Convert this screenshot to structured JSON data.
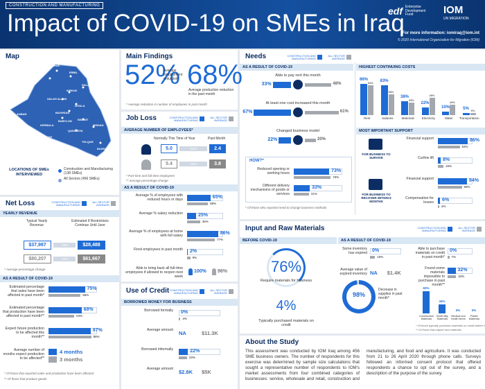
{
  "colors": {
    "cm": "#1f6bd6",
    "all": "#a3a8ae"
  },
  "header": {
    "tag": "CONSTRUCTION AND MANUFACTURING",
    "title": "Impact of COVID-19 on SMEs in Iraq",
    "logos": [
      "edf",
      "Enterprise Development Fund",
      "IOM",
      "UN MIGRATION"
    ],
    "more_info": "For more information: iomiraq@iom.int",
    "copyright": "© 2020 International Organization for Migration (IOM)"
  },
  "legend": {
    "cm": "CONSTRUCTION AND MANUFACTURING",
    "all": "ALL SECTOR AVERAGE"
  },
  "map": {
    "title": "Map",
    "cities": [
      "DAHUK",
      "ERBIL",
      "NINEWA",
      "SULAYMANIYAH",
      "KIRKUK",
      "SALAH AL-DIN",
      "DIYALA",
      "ANBAR",
      "BAGHDAD",
      "KERBALA",
      "BABYLON",
      "WASSIT",
      "NAJAF",
      "QADISSIYA",
      "MISSAN",
      "THI-QAR",
      "BASRA",
      "MUTHANNA"
    ],
    "legend_title": "LOCATIONS OF SMEs INTERVIEWED",
    "legend_items": [
      "Construction and Manufacturing (138 SMEs)",
      "All Sectors (456 SMEs)"
    ]
  },
  "main_findings": {
    "title": "Main Findings",
    "values": [
      52,
      68
    ],
    "value_labels": [
      "52%",
      "68%"
    ],
    "labels": [
      "Average employment reduction*",
      "Average production reduction in the past month"
    ],
    "note": "* Average reduction in number of employees in past month"
  },
  "job_loss": {
    "title": "Job Loss",
    "subtitle": "AVERAGE NUMBER OF EMPLOYEES*",
    "columns": [
      "Normally This Time of Year",
      "Past Month"
    ],
    "rows": [
      {
        "values": [
          5,
          2.4
        ],
        "value_labels": [
          "5.0",
          "2.4"
        ],
        "change": "-52%"
      },
      {
        "values": [
          5.4,
          3.8
        ],
        "value_labels": [
          "5.4",
          "3.8"
        ],
        "change": "-30%"
      }
    ],
    "notes": [
      "* Part-time and full-time employees",
      "** average percentage change"
    ],
    "covid": {
      "subtitle": "AS A RESULT OF COVID-19",
      "items": [
        {
          "label": "Average % of employees with reduced hours or days",
          "values": [
            65,
            58
          ],
          "value_labels": [
            "65%",
            "58%"
          ]
        },
        {
          "label": "Average % salary reduction",
          "values": [
            25,
            36
          ],
          "value_labels": [
            "25%",
            "36%"
          ]
        },
        {
          "label": "Average % of employees at home with full salary",
          "values": [
            86,
            77
          ],
          "value_labels": [
            "86%",
            "77%"
          ]
        },
        {
          "label": "Fired employees in past month",
          "values": [
            2,
            9
          ],
          "value_labels": [
            "2%",
            "9%"
          ]
        }
      ],
      "bring_back": {
        "label": "Able to bring back all full-time employees if allowed to reopen next week",
        "values": [
          100,
          96
        ],
        "value_labels": [
          "100%",
          "96%"
        ]
      }
    }
  },
  "net_loss": {
    "title": "Net Loss",
    "subtitle": "YEARLY REVENUE",
    "columns": [
      "Typical Yearly Revenue",
      "Estimated if Restrictions Continue Until June"
    ],
    "rows": [
      {
        "values": [
          37987,
          28488
        ],
        "value_labels": [
          "$37,987",
          "$28,488"
        ],
        "change": "-25%"
      },
      {
        "values": [
          80207,
          61667
        ],
        "value_labels": [
          "$80,207",
          "$61,667"
        ],
        "change": "-23%"
      }
    ],
    "note": "* Average percentage change",
    "covid": {
      "subtitle": "AS A RESULT OF COVID-19",
      "items": [
        {
          "label": "Estimated percentage that sales have been affected in past month*",
          "values": [
            75,
            66
          ],
          "value_labels": [
            "75%",
            "66%"
          ]
        },
        {
          "label": "Estimated percentage that production have been affected in past month**",
          "values": [
            68,
            53
          ],
          "value_labels": [
            "68%",
            "53%"
          ]
        },
        {
          "label": "Expect future production to be affected this month**",
          "values": [
            87,
            88
          ],
          "value_labels": [
            "87%",
            "88%"
          ]
        }
      ],
      "months": {
        "label": "Average number of months expect production to be affected**",
        "values": [
          4,
          3
        ],
        "value_labels": [
          "4 months",
          "3 months"
        ]
      },
      "notes": [
        "* Of those that reported sales and production have been affected",
        "** Of those that produce goods"
      ]
    }
  },
  "use_of_credit": {
    "title": "Use of Credit",
    "subtitle": "BORROWED MONEY FOR BUSINESS",
    "items": [
      {
        "label": "Borrowed formally",
        "values": [
          0,
          4
        ],
        "value_labels": [
          "0%",
          "4%"
        ]
      },
      {
        "label": "Average amount",
        "values": [
          null,
          11300
        ],
        "value_labels": [
          "NA",
          "$11.3K"
        ]
      },
      {
        "label": "Borrowed informally",
        "values": [
          22,
          20
        ],
        "value_labels": [
          "22%",
          "20%"
        ]
      },
      {
        "label": "Average amount",
        "values": [
          2800,
          5000
        ],
        "value_labels": [
          "$2.8K",
          "$5K"
        ]
      }
    ]
  },
  "needs": {
    "title": "Needs",
    "subtitle": "AS A RESULT OF COVID-19",
    "items": [
      {
        "label": "Able to pay rent this month",
        "values": [
          33,
          48
        ],
        "value_labels": [
          "33%",
          "48%"
        ]
      },
      {
        "label": "At least one cost increased this month",
        "values": [
          67,
          61
        ],
        "value_labels": [
          "67%",
          "61%"
        ]
      },
      {
        "label": "Changed business model",
        "values": [
          22,
          20
        ],
        "value_labels": [
          "22%",
          "20%"
        ]
      }
    ],
    "how": {
      "title": "HOW?*",
      "items": [
        {
          "label": "Reduced opening or working hours",
          "values": [
            73,
            76
          ],
          "value_labels": [
            "73%",
            "76%"
          ]
        },
        {
          "label": "Different delivery mechanisms of goods or services",
          "values": [
            33,
            31
          ],
          "value_labels": [
            "33%",
            "31%"
          ]
        }
      ],
      "note": "* Of those who reported need to change business methods"
    },
    "costs": {
      "title": "HIGHEST CONTINUING COSTS",
      "categories": [
        "Rent",
        "Salaries",
        "Materials",
        "Electricity",
        "Water",
        "Transportation"
      ],
      "series": [
        {
          "values": [
            86,
            83,
            38,
            22,
            10,
            5
          ],
          "value_labels": [
            "86%",
            "83%",
            "38%",
            "22%",
            "10%",
            "5%"
          ]
        },
        {
          "values": [
            83,
            58,
            35,
            48,
            28,
            5
          ],
          "value_labels": [
            "83%",
            "58%",
            "35%",
            "48%",
            "28%",
            "5%"
          ]
        }
      ]
    },
    "support": {
      "title": "MOST IMPORTANT SUPPORT",
      "groups": [
        {
          "label": "FOR BUSINESS TO SURVIVE",
          "items": [
            {
              "label": "Financial support",
              "values": [
                86,
                63
              ],
              "value_labels": [
                "86%",
                "63%"
              ]
            },
            {
              "label": "Curfew lift",
              "values": [
                8,
                16
              ],
              "value_labels": [
                "8%",
                "16%"
              ]
            }
          ]
        },
        {
          "label": "FOR BUSINESS TO RECOVER WITHIN 6 MONTHS",
          "items": [
            {
              "label": "Financial support",
              "values": [
                84,
                69
              ],
              "value_labels": [
                "84%",
                "69%"
              ]
            },
            {
              "label": "Compensation for losses",
              "values": [
                6,
                4
              ],
              "value_labels": [
                "6%",
                "4%"
              ]
            }
          ]
        }
      ]
    }
  },
  "input": {
    "title": "Input and Raw Materials",
    "before": {
      "subtitle": "BEFORE COVID-19",
      "items": [
        {
          "label": "Require materials for business",
          "value": 76,
          "value_label": "76%"
        },
        {
          "label": "Typically purchased materials on credit",
          "value": 4,
          "value_label": "4%"
        }
      ]
    },
    "covid": {
      "subtitle": "AS A RESULT OF COVID-19",
      "left": [
        {
          "label": "Some inventory has expired",
          "values": [
            0,
            16
          ],
          "value_labels": [
            "0%",
            "16%"
          ]
        },
        {
          "label": "Average value of expired inventory",
          "values": [
            null,
            1400
          ],
          "value_labels": [
            "NA",
            "$1.4K"
          ]
        }
      ],
      "right": [
        {
          "label": "Able to purchase materials on credit in past month*",
          "values": [
            0,
            7
          ],
          "value_labels": [
            "0%",
            "7%"
          ]
        },
        {
          "label": "Found some materials impossible to purchase in past month**",
          "values": [
            32,
            34
          ],
          "value_labels": [
            "32%",
            "34%"
          ]
        }
      ],
      "donut": {
        "value": 98,
        "value_label": "98%",
        "label": "Decrease in supplies in past month*"
      },
      "materials": {
        "categories": [
          "Construction Materials",
          "Small Mfg. Materials",
          "Medical and health items",
          "Plastic Materials"
        ],
        "values": [
          83,
          34,
          0,
          0
        ],
        "value_labels": [
          "83%",
          "34%",
          "0%",
          "0%"
        ]
      },
      "notes": [
        "* Of those typically purchase materials on credit before COVID-19",
        "** Of those that require raw materials"
      ]
    }
  },
  "about": {
    "title": "About the Study",
    "text": "This assessment was conducted by IOM Iraq among 456 SME business owners. The number of respondents for this exercise was determined by sample size calculations that sought a representative number of respondents to IOM's market assessments from four combined categories of businesses: service, wholesale and retail, construction and manufacturing, and food and agriculture. It was conducted from 21 to 26 April 2020 through phone calls. Surveys followed an informed consent protocol that offered respondents a chance to opt out of the survey, and a description of the purpose of the survey."
  }
}
